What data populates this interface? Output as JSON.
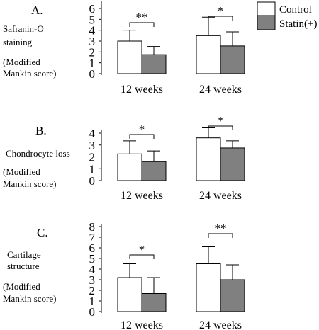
{
  "legend": {
    "entries": [
      {
        "label": "Control",
        "color": "#ffffff"
      },
      {
        "label": "Statin(+)",
        "color": "#808080"
      }
    ]
  },
  "chart_data": [
    {
      "type": "bar",
      "panel": "A.",
      "label_lines": [
        "Safranin-O",
        "staining",
        "(Modified",
        "Mankin score)"
      ],
      "categories": [
        "12 weeks",
        "24 weeks"
      ],
      "series": [
        {
          "name": "Control",
          "values": [
            3.0,
            3.5
          ],
          "errors": [
            1.0,
            1.7
          ]
        },
        {
          "name": "Statin(+)",
          "values": [
            1.75,
            2.55
          ],
          "errors": [
            0.75,
            1.3
          ]
        }
      ],
      "ylim": [
        0,
        6
      ],
      "yticks": [
        "0",
        "1",
        "2",
        "3",
        "4",
        "5",
        "6"
      ],
      "significance": [
        "**",
        "*"
      ]
    },
    {
      "type": "bar",
      "panel": "B.",
      "label_lines": [
        "Chondrocyte loss",
        "",
        "(Modified",
        "Mankin score)"
      ],
      "categories": [
        "12 weeks",
        "24 weeks"
      ],
      "series": [
        {
          "name": "Control",
          "values": [
            2.25,
            3.6
          ],
          "errors": [
            1.1,
            0.85
          ]
        },
        {
          "name": "Statin(+)",
          "values": [
            1.6,
            2.75
          ],
          "errors": [
            0.9,
            0.6
          ]
        }
      ],
      "ylim": [
        0,
        4
      ],
      "yticks": [
        "0",
        "1",
        "2",
        "3",
        "4"
      ],
      "significance": [
        "*",
        "*"
      ]
    },
    {
      "type": "bar",
      "panel": "C.",
      "label_lines": [
        "Cartilage",
        "structure",
        "(Modified",
        "Mankin score)"
      ],
      "categories": [
        "12 weeks",
        "24 weeks"
      ],
      "series": [
        {
          "name": "Control",
          "values": [
            3.2,
            4.5
          ],
          "errors": [
            1.3,
            1.6
          ]
        },
        {
          "name": "Statin(+)",
          "values": [
            1.7,
            3.0
          ],
          "errors": [
            1.5,
            1.4
          ]
        }
      ],
      "ylim": [
        0,
        8
      ],
      "yticks": [
        "0",
        "1",
        "2",
        "3",
        "4",
        "5",
        "6",
        "7",
        "8"
      ],
      "significance": [
        "*",
        "**"
      ]
    }
  ]
}
